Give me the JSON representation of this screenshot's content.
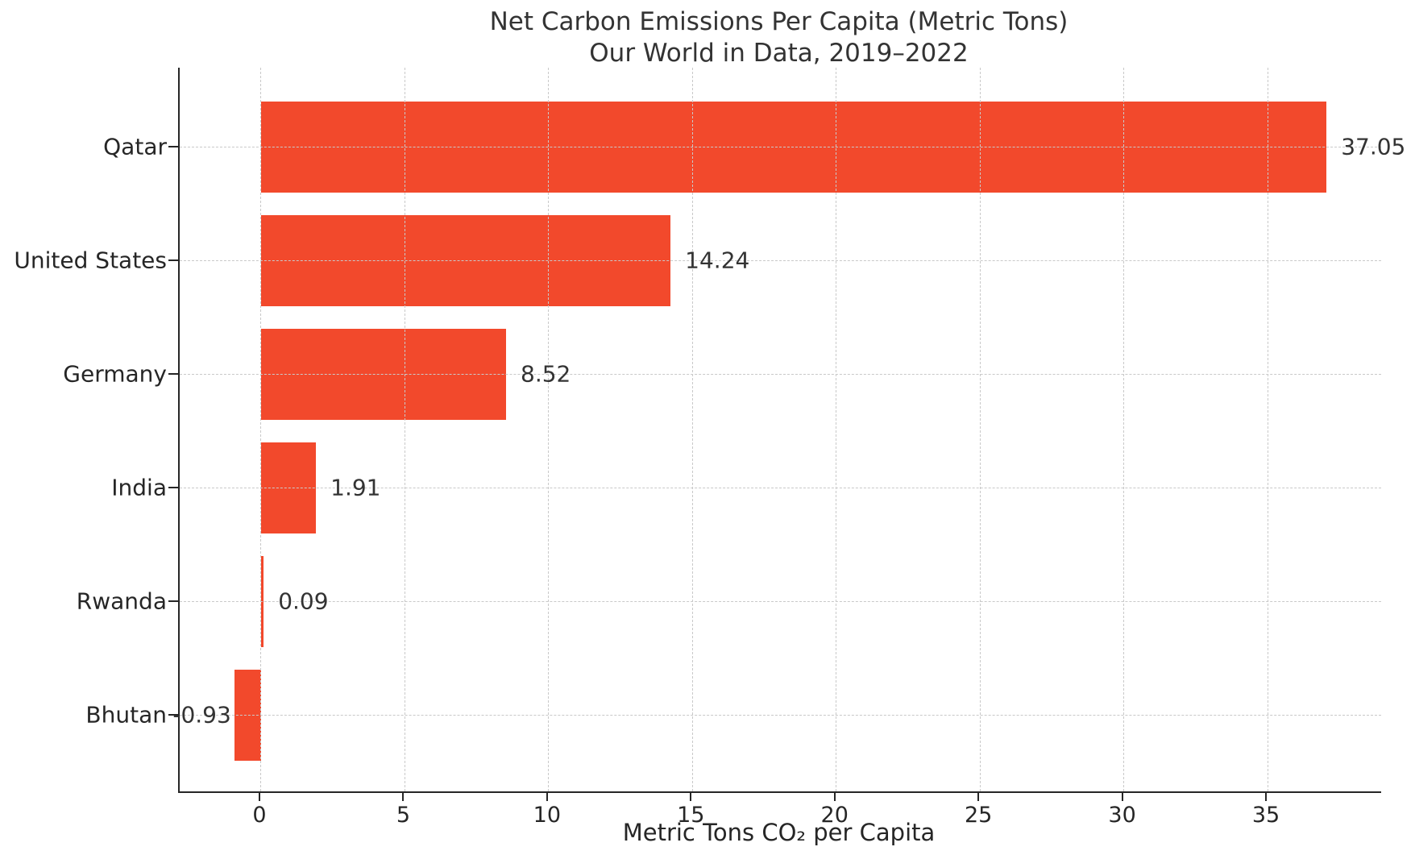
{
  "chart_data": {
    "type": "bar",
    "orientation": "horizontal",
    "title": "Net Carbon Emissions Per Capita (Metric Tons)",
    "subtitle": "Our World in Data, 2019–2022",
    "categories": [
      "Qatar",
      "United States",
      "Germany",
      "India",
      "Rwanda",
      "Bhutan"
    ],
    "values": [
      37.05,
      14.24,
      8.52,
      1.91,
      0.09,
      -0.93
    ],
    "value_labels": [
      "37.05",
      "14.24",
      "8.52",
      "1.91",
      "0.09",
      "-0.93"
    ],
    "xlabel": "Metric Tons CO₂ per Capita",
    "ylabel": "",
    "xticks": [
      0,
      5,
      10,
      15,
      20,
      25,
      30,
      35
    ],
    "xtick_labels": [
      "0",
      "5",
      "10",
      "15",
      "20",
      "25",
      "30",
      "35"
    ],
    "xlim": [
      -2.83,
      38.95
    ],
    "grid": true,
    "grid_style": "dashed",
    "legend": "none",
    "colors": {
      "bar": "#F2492C",
      "grid": "#C9C9C9",
      "axis": "#262626",
      "text": "#333333",
      "background": "#FFFFFF"
    }
  }
}
